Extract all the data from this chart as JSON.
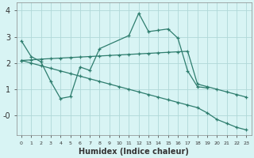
{
  "xlabel": "Humidex (Indice chaleur)",
  "x_all": [
    0,
    1,
    2,
    3,
    4,
    5,
    6,
    7,
    8,
    9,
    10,
    11,
    12,
    13,
    14,
    15,
    16,
    17,
    18,
    19,
    20,
    21,
    22,
    23
  ],
  "line_jagged_x": [
    0,
    1,
    2,
    3,
    4,
    5,
    6,
    7,
    8,
    11,
    12,
    13,
    14,
    15,
    16,
    17,
    18,
    19
  ],
  "line_jagged_y": [
    2.85,
    2.25,
    2.05,
    1.3,
    0.65,
    0.72,
    1.85,
    1.72,
    2.55,
    3.05,
    3.9,
    3.2,
    3.25,
    3.3,
    2.95,
    1.7,
    1.1,
    1.05
  ],
  "line_upper_x": [
    0,
    1,
    2,
    3,
    4,
    5,
    6,
    7,
    8,
    9,
    10,
    11,
    12,
    13,
    14,
    15,
    16,
    17,
    18,
    19,
    20,
    21,
    22,
    23
  ],
  "line_upper_y": [
    2.1,
    2.12,
    2.15,
    2.17,
    2.19,
    2.21,
    2.23,
    2.25,
    2.27,
    2.29,
    2.31,
    2.33,
    2.35,
    2.37,
    2.39,
    2.41,
    2.43,
    2.45,
    1.2,
    1.1,
    1.0,
    0.9,
    0.8,
    0.7
  ],
  "line_lower_x": [
    0,
    1,
    2,
    3,
    4,
    5,
    6,
    7,
    8,
    9,
    10,
    11,
    12,
    13,
    14,
    15,
    16,
    17,
    18,
    19,
    20,
    21,
    22,
    23
  ],
  "line_lower_y": [
    2.1,
    2.0,
    1.9,
    1.8,
    1.7,
    1.6,
    1.5,
    1.4,
    1.3,
    1.2,
    1.1,
    1.0,
    0.9,
    0.8,
    0.7,
    0.6,
    0.5,
    0.4,
    0.3,
    0.1,
    -0.15,
    -0.3,
    -0.45,
    -0.55
  ],
  "color": "#2e7d6e",
  "bg_color": "#d8f4f4",
  "grid_color": "#b0d8d8",
  "ylim": [
    -0.75,
    4.3
  ],
  "xlim": [
    -0.5,
    23.5
  ],
  "yticks": [
    0,
    1,
    2,
    3,
    4
  ],
  "ytick_labels": [
    "-0",
    "1",
    "2",
    "3",
    "4"
  ]
}
